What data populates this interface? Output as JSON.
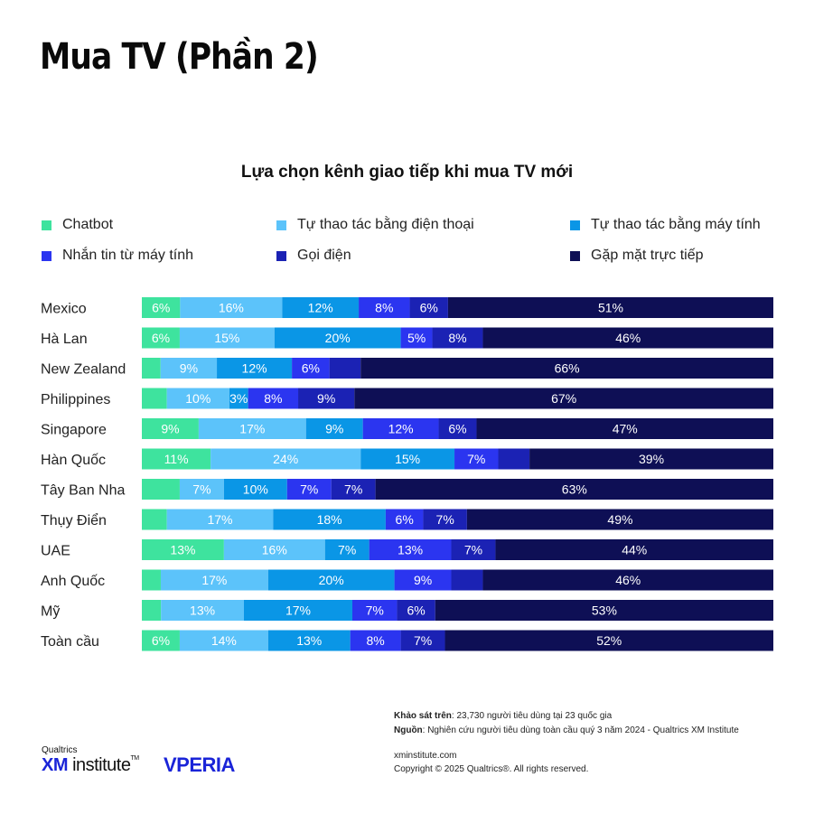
{
  "title": "Mua TV (Phần 2)",
  "colors": {
    "Chatbot": "#3ee39e",
    "Tự thao tác bằng điện thoại": "#5cc3fa",
    "Tự thao tác bằng máy tính": "#0a96e6",
    "Nhắn tin từ máy tính": "#2b35f0",
    "Gọi điện": "#1b22b4",
    "Gặp mặt trực tiếp": "#0e0f55"
  },
  "chart_data": {
    "type": "bar",
    "orientation": "horizontal",
    "stacked": true,
    "title": "Lựa chọn kênh giao tiếp khi mua TV mới",
    "xlim": [
      0,
      100
    ],
    "legend_position": "top",
    "categories": [
      "Mexico",
      "Hà Lan",
      "New Zealand",
      "Philippines",
      "Singapore",
      "Hàn Quốc",
      "Tây Ban Nha",
      "Thụy Điển",
      "UAE",
      "Anh Quốc",
      "Mỹ",
      "Toàn cầu"
    ],
    "series": [
      {
        "name": "Chatbot",
        "values": [
          6,
          6,
          3,
          4,
          9,
          11,
          6,
          4,
          13,
          3,
          3,
          6
        ]
      },
      {
        "name": "Tự thao tác bằng điện thoại",
        "values": [
          16,
          15,
          9,
          10,
          17,
          24,
          7,
          17,
          16,
          17,
          13,
          14
        ]
      },
      {
        "name": "Tự thao tác bằng máy tính",
        "values": [
          12,
          20,
          12,
          3,
          9,
          15,
          10,
          18,
          7,
          20,
          17,
          13
        ]
      },
      {
        "name": "Nhắn tin từ máy tính",
        "values": [
          8,
          5,
          6,
          8,
          12,
          7,
          7,
          6,
          13,
          9,
          7,
          8
        ]
      },
      {
        "name": "Gọi điện",
        "values": [
          6,
          8,
          5,
          9,
          6,
          5,
          7,
          7,
          7,
          5,
          6,
          7
        ]
      },
      {
        "name": "Gặp mặt trực tiếp",
        "values": [
          51,
          46,
          66,
          67,
          47,
          39,
          63,
          49,
          44,
          46,
          53,
          52
        ]
      }
    ],
    "labels": [
      [
        "6%",
        "16%",
        "12%",
        "8%",
        "6%",
        "51%"
      ],
      [
        "6%",
        "15%",
        "20%",
        "5%",
        "8%",
        "46%"
      ],
      [
        "",
        "9%",
        "12%",
        "6%",
        "",
        "66%"
      ],
      [
        "",
        "10%",
        "3%",
        "8%",
        "9%",
        "67%"
      ],
      [
        "9%",
        "17%",
        "9%",
        "12%",
        "6%",
        "47%"
      ],
      [
        "11%",
        "24%",
        "15%",
        "7%",
        "",
        "39%"
      ],
      [
        "",
        "7%",
        "10%",
        "7%",
        "7%",
        "63%"
      ],
      [
        "",
        "17%",
        "18%",
        "6%",
        "7%",
        "49%"
      ],
      [
        "13%",
        "16%",
        "7%",
        "13%",
        "7%",
        "44%"
      ],
      [
        "",
        "17%",
        "20%",
        "9%",
        "",
        "46%"
      ],
      [
        "",
        "13%",
        "17%",
        "7%",
        "6%",
        "53%"
      ],
      [
        "6%",
        "14%",
        "13%",
        "8%",
        "7%",
        "52%"
      ]
    ]
  },
  "footer": {
    "survey_label": "Khảo sát trên",
    "survey_text": ": 23,730 người tiêu dùng tại 23 quốc gia",
    "source_label": "Nguồn",
    "source_text": ": Nghiên cứu người tiêu dùng toàn cầu quý 3 năm 2024 - Qualtrics XM Institute",
    "website": "xminstitute.com",
    "copyright": "Copyright © 2025 Qualtrics®. All rights reserved."
  },
  "brand": {
    "qualtrics": "Qualtrics",
    "xm": "XM",
    "institute": "institute",
    "tm": "TM",
    "vperia": "VPERIA"
  }
}
